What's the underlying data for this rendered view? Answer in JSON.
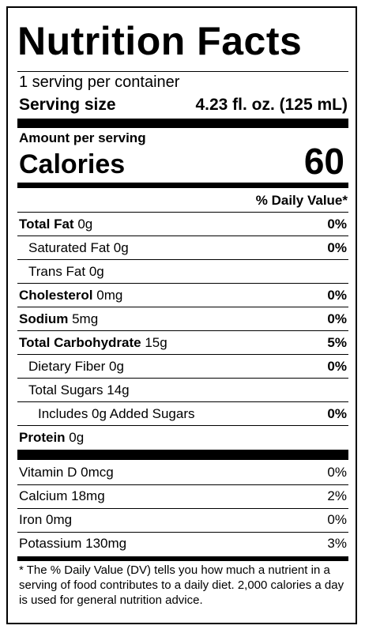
{
  "title": "Nutrition Facts",
  "servings_per_container": "1 serving per container",
  "serving_size": {
    "label": "Serving size",
    "value": "4.23 fl. oz. (125 mL)"
  },
  "amount_per_serving": "Amount per serving",
  "calories": {
    "label": "Calories",
    "value": "60"
  },
  "daily_value_header": "% Daily Value*",
  "nutrients": [
    {
      "name": "Total Fat",
      "amount": "0g",
      "dv": "0%",
      "bold": true,
      "indent": 0
    },
    {
      "name": "Saturated Fat",
      "amount": "0g",
      "dv": "0%",
      "bold": false,
      "indent": 1
    },
    {
      "name": "Trans Fat",
      "amount": "0g",
      "bold": false,
      "indent": 1
    },
    {
      "name": "Cholesterol",
      "amount": "0mg",
      "dv": "0%",
      "bold": true,
      "indent": 0
    },
    {
      "name": "Sodium",
      "amount": "5mg",
      "dv": "0%",
      "bold": true,
      "indent": 0
    },
    {
      "name": "Total Carbohydrate",
      "amount": "15g",
      "dv": "5%",
      "bold": true,
      "indent": 0
    },
    {
      "name": "Dietary Fiber",
      "amount": "0g",
      "dv": "0%",
      "bold": false,
      "indent": 1
    },
    {
      "name": "Total Sugars",
      "amount": "14g",
      "bold": false,
      "indent": 1
    },
    {
      "name": "Includes 0g Added Sugars",
      "dv": "0%",
      "bold": false,
      "indent": 2
    },
    {
      "name": "Protein",
      "amount": "0g",
      "bold": true,
      "indent": 0
    }
  ],
  "vitamins": [
    {
      "name": "Vitamin D",
      "amount": "0mcg",
      "dv": "0%"
    },
    {
      "name": "Calcium",
      "amount": "18mg",
      "dv": "2%"
    },
    {
      "name": "Iron",
      "amount": "0mg",
      "dv": "0%"
    },
    {
      "name": "Potassium",
      "amount": "130mg",
      "dv": "3%"
    }
  ],
  "footnote": "* The % Daily Value (DV) tells you how much a nutrient in a serving of food contributes to a daily diet. 2,000 calories a day is used for general nutrition advice."
}
